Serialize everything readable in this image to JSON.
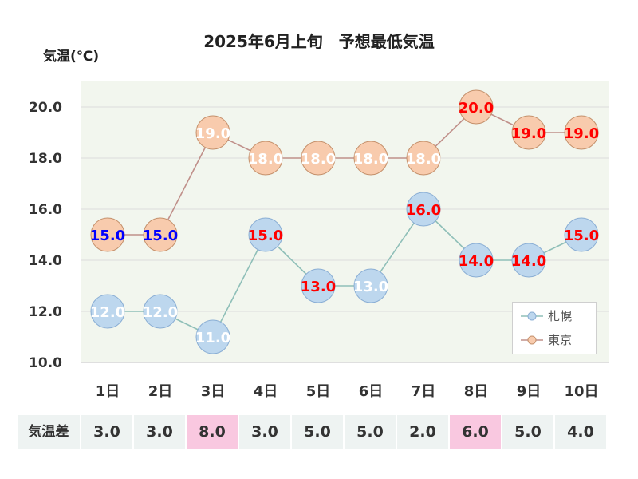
{
  "chart_data": {
    "type": "line",
    "title": "2025年6月上旬　予想最低気温",
    "ylabel": "気温(℃)",
    "ylim": [
      10,
      21
    ],
    "yticks": [
      "10.0",
      "12.0",
      "14.0",
      "16.0",
      "18.0",
      "20.0"
    ],
    "ytick_values": [
      10,
      12,
      14,
      16,
      18,
      20
    ],
    "categories": [
      "1日",
      "2日",
      "3日",
      "4日",
      "5日",
      "6日",
      "7日",
      "8日",
      "9日",
      "10日"
    ],
    "series": [
      {
        "name": "札幌",
        "values": [
          12.0,
          12.0,
          11.0,
          15.0,
          13.0,
          13.0,
          16.0,
          14.0,
          14.0,
          15.0
        ],
        "labels": [
          "12.0",
          "12.0",
          "11.0",
          "15.0",
          "13.0",
          "13.0",
          "16.0",
          "14.0",
          "14.0",
          "15.0"
        ],
        "label_colors": [
          "#ffffff",
          "#ffffff",
          "#ffffff",
          "#ff0000",
          "#ff0000",
          "#ffffff",
          "#ff0000",
          "#ff0000",
          "#ff0000",
          "#ff0000"
        ],
        "marker_fill": "#bdd7ee",
        "marker_stroke": "#8aaed4",
        "line_color": "#8fbfb8"
      },
      {
        "name": "東京",
        "values": [
          15.0,
          15.0,
          19.0,
          18.0,
          18.0,
          18.0,
          18.0,
          20.0,
          19.0,
          19.0
        ],
        "labels": [
          "15.0",
          "15.0",
          "19.0",
          "18.0",
          "18.0",
          "18.0",
          "18.0",
          "20.0",
          "19.0",
          "19.0"
        ],
        "label_colors": [
          "#0000ff",
          "#0000ff",
          "#ffffff",
          "#ffffff",
          "#ffffff",
          "#ffffff",
          "#ffffff",
          "#ff0000",
          "#ff0000",
          "#ff0000"
        ],
        "marker_fill": "#f8cbad",
        "marker_stroke": "#c4906b",
        "line_color": "#c0908a"
      }
    ],
    "grid": true,
    "legend": "bottom-right",
    "plot_background": "#f2f6ee"
  },
  "diff_table": {
    "header": "気温差",
    "values": [
      "3.0",
      "3.0",
      "8.0",
      "3.0",
      "5.0",
      "5.0",
      "2.0",
      "6.0",
      "5.0",
      "4.0"
    ],
    "highlighted": [
      false,
      false,
      true,
      false,
      false,
      false,
      false,
      true,
      false,
      false
    ],
    "highlight_color": "#f9c8e0"
  }
}
